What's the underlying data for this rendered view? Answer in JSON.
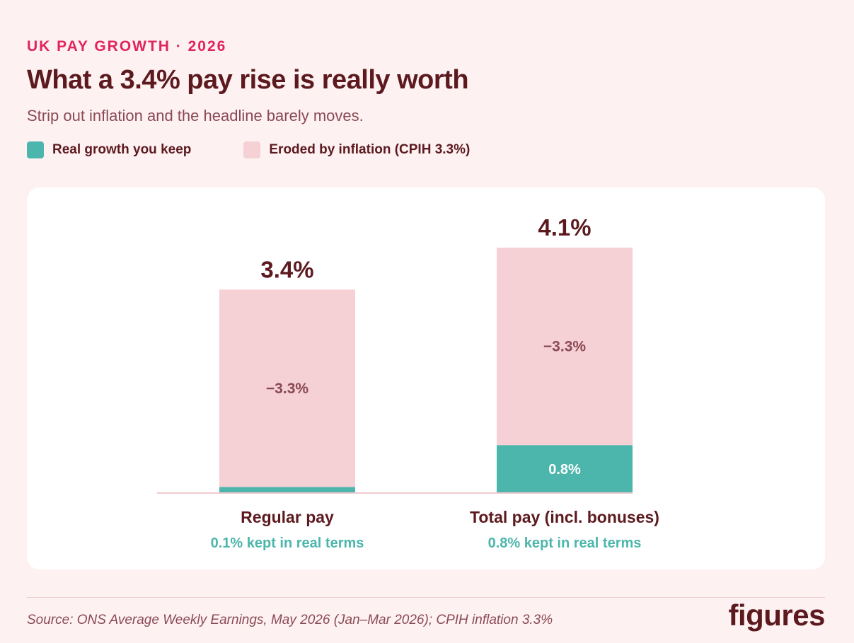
{
  "header": {
    "kicker": "UK PAY GROWTH · 2026",
    "title": "What a 3.4% pay rise is really worth",
    "subtitle": "Strip out inflation and the headline barely moves."
  },
  "legend": {
    "items": [
      {
        "label": "Real growth you keep",
        "color": "#4db6ac"
      },
      {
        "label": "Eroded by inflation (CPIH 3.3%)",
        "color": "#f5d0d5"
      }
    ]
  },
  "colors": {
    "real": "#4db6ac",
    "eroded": "#f5d0d5",
    "total_label": "#5c1a1f",
    "eroded_label": "#8a4a52",
    "baseline": "#efc9ce",
    "sub_label": "#4db6ac"
  },
  "chart_data": {
    "type": "bar",
    "stacked": true,
    "categories": [
      "Regular pay",
      "Total pay (incl. bonuses)"
    ],
    "series": [
      {
        "name": "Real growth you keep",
        "values": [
          0.1,
          0.8
        ]
      },
      {
        "name": "Eroded by inflation (CPIH 3.3%)",
        "values": [
          3.3,
          3.3
        ]
      }
    ],
    "totals": [
      3.4,
      4.1
    ],
    "total_labels": [
      "3.4%",
      "4.1%"
    ],
    "eroded_labels": [
      "−3.3%",
      "−3.3%"
    ],
    "real_labels": [
      "",
      "0.8%"
    ],
    "sub_labels": [
      "0.1% kept in real terms",
      "0.8% kept in real terms"
    ],
    "ylim": [
      0,
      4.1
    ],
    "grid": false
  },
  "footer": {
    "source": "Source: ONS Average Weekly Earnings, May 2026 (Jan–Mar 2026); CPIH inflation 3.3%",
    "logo": "figures"
  }
}
